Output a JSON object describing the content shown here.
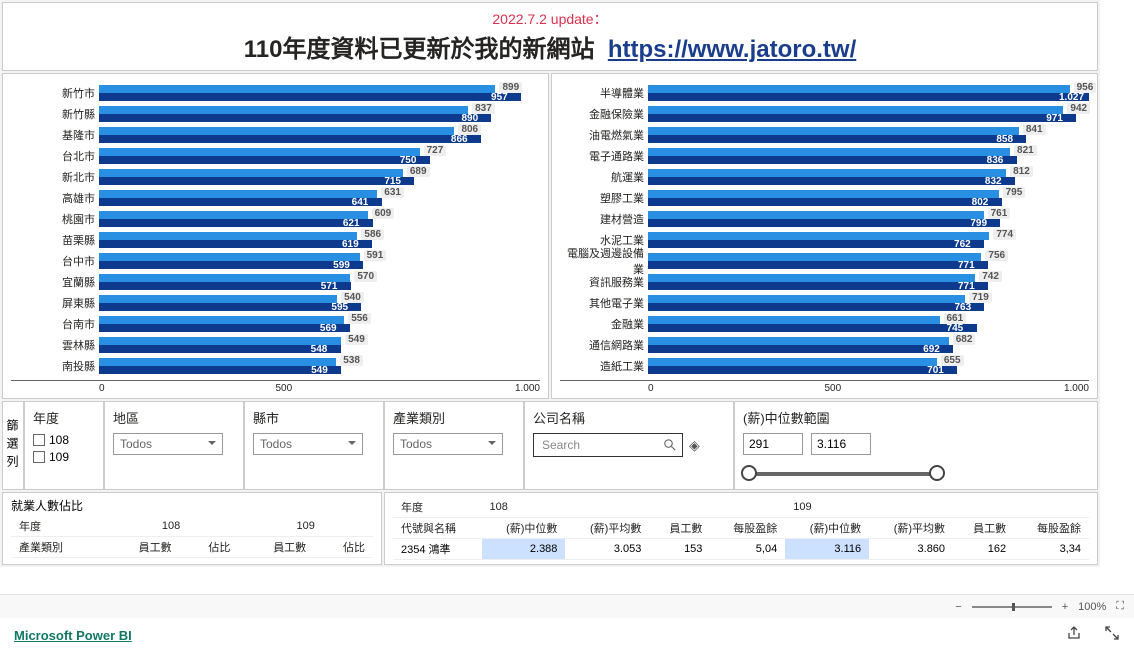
{
  "header": {
    "update_text": "2022.7.2 update：",
    "main_text": "110年度資料已更新於我的新網站",
    "link_text": "https://www.jatoro.tw/"
  },
  "chart_left": {
    "max": 1000,
    "ticks": [
      "0",
      "500",
      "1.000"
    ],
    "rows": [
      {
        "label": "新竹市",
        "light": 899,
        "dark": 957
      },
      {
        "label": "新竹縣",
        "light": 837,
        "dark": 890
      },
      {
        "label": "基隆市",
        "light": 806,
        "dark": 866
      },
      {
        "label": "台北市",
        "light": 727,
        "dark": 750
      },
      {
        "label": "新北市",
        "light": 689,
        "dark": 715
      },
      {
        "label": "高雄市",
        "light": 631,
        "dark": 641
      },
      {
        "label": "桃園市",
        "light": 609,
        "dark": 621
      },
      {
        "label": "苗栗縣",
        "light": 586,
        "dark": 619
      },
      {
        "label": "台中市",
        "light": 591,
        "dark": 599
      },
      {
        "label": "宜蘭縣",
        "light": 570,
        "dark": 571
      },
      {
        "label": "屏東縣",
        "light": 540,
        "dark": 595
      },
      {
        "label": "台南市",
        "light": 556,
        "dark": 569
      },
      {
        "label": "雲林縣",
        "light": 549,
        "dark": 548
      },
      {
        "label": "南投縣",
        "light": 538,
        "dark": 549
      }
    ]
  },
  "chart_right": {
    "max": 1000,
    "ticks": [
      "0",
      "500",
      "1.000"
    ],
    "rows": [
      {
        "label": "半導體業",
        "light": 956,
        "dark": 1027,
        "dark_disp": "1.027"
      },
      {
        "label": "金融保險業",
        "light": 942,
        "dark": 971
      },
      {
        "label": "油電燃氣業",
        "light": 841,
        "dark": 858
      },
      {
        "label": "電子通路業",
        "light": 821,
        "dark": 836
      },
      {
        "label": "航運業",
        "light": 812,
        "dark": 832
      },
      {
        "label": "塑膠工業",
        "light": 795,
        "dark": 802
      },
      {
        "label": "建材營造",
        "light": 761,
        "dark": 799
      },
      {
        "label": "水泥工業",
        "light": 774,
        "dark": 762
      },
      {
        "label": "電腦及週邊設備業",
        "light": 756,
        "dark": 771
      },
      {
        "label": "資訊服務業",
        "light": 742,
        "dark": 771
      },
      {
        "label": "其他電子業",
        "light": 719,
        "dark": 763
      },
      {
        "label": "金融業",
        "light": 661,
        "dark": 745
      },
      {
        "label": "通信網路業",
        "light": 682,
        "dark": 692
      },
      {
        "label": "造紙工業",
        "light": 655,
        "dark": 701
      }
    ]
  },
  "filters": {
    "side_label": "篩選列",
    "year": {
      "title": "年度",
      "options": [
        "108",
        "109"
      ]
    },
    "region": {
      "title": "地區",
      "value": "Todos"
    },
    "county": {
      "title": "縣市",
      "value": "Todos"
    },
    "industry": {
      "title": "產業類別",
      "value": "Todos"
    },
    "company": {
      "title": "公司名稱",
      "placeholder": "Search"
    },
    "median": {
      "title": "(薪)中位數範圍",
      "min": "291",
      "max": "3.116"
    }
  },
  "table_left": {
    "title": "就業人數佔比",
    "row_header": "年度",
    "cat_header": "產業類別",
    "years": [
      "108",
      "109"
    ],
    "cols": [
      "員工數",
      "佔比",
      "員工數",
      "佔比"
    ]
  },
  "table_right": {
    "row_header": "年度",
    "id_header": "代號與名稱",
    "years": [
      "108",
      "109"
    ],
    "cols": [
      "(薪)中位數",
      "(薪)平均數",
      "員工數",
      "每股盈餘",
      "(薪)中位數",
      "(薪)平均數",
      "員工數",
      "每股盈餘"
    ],
    "row1": {
      "id": "2354 鴻準",
      "vals": [
        "2.388",
        "3.053",
        "153",
        "5,04",
        "3.116",
        "3.860",
        "162",
        "3,34"
      ]
    }
  },
  "status": {
    "zoom": "100%"
  },
  "footer": {
    "brand": "Microsoft Power BI"
  }
}
